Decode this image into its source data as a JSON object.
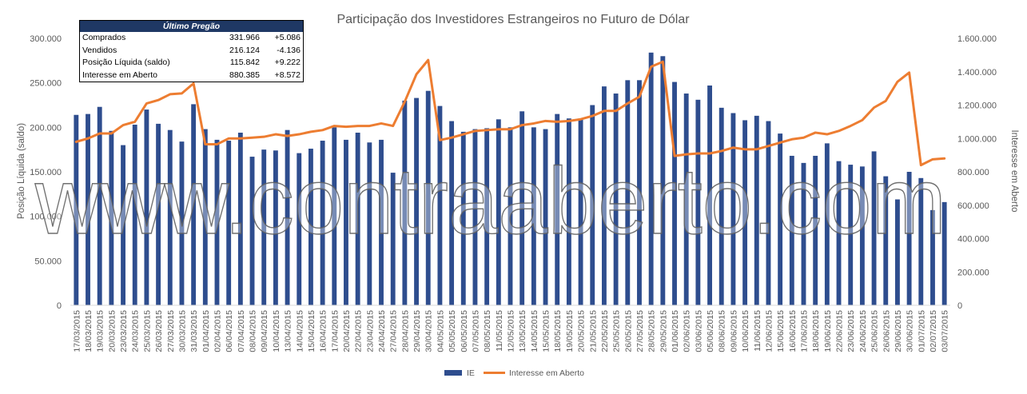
{
  "chart_data": {
    "type": "bar+line",
    "title": "Participação dos Investidores Estrangeiros no Futuro de Dólar",
    "ylabel_left": "Posição Líquida (saldo)",
    "ylabel_right": "Interesse em Aberto",
    "ylim_left": [
      0,
      300000
    ],
    "ylim_right": [
      0,
      1600000
    ],
    "yticks_left": [
      "0",
      "50.000",
      "100.000",
      "150.000",
      "200.000",
      "250.000",
      "300.000"
    ],
    "yticks_right": [
      "0",
      "200.000",
      "400.000",
      "600.000",
      "800.000",
      "1.000.000",
      "1.200.000",
      "1.400.000",
      "1.600.000"
    ],
    "grid": false,
    "legend_position": "bottom",
    "bar_color": "#2e4d8e",
    "line_color": "#ed7d31",
    "categories": [
      "17/03/2015",
      "18/03/2015",
      "19/03/2015",
      "20/03/2015",
      "23/03/2015",
      "24/03/2015",
      "25/03/2015",
      "26/03/2015",
      "27/03/2015",
      "30/03/2015",
      "31/03/2015",
      "01/04/2015",
      "02/04/2015",
      "06/04/2015",
      "07/04/2015",
      "08/04/2015",
      "09/04/2015",
      "10/04/2015",
      "13/04/2015",
      "14/04/2015",
      "15/04/2015",
      "16/04/2015",
      "17/04/2015",
      "20/04/2015",
      "22/04/2015",
      "23/04/2015",
      "24/04/2015",
      "27/04/2015",
      "28/04/2015",
      "29/04/2015",
      "30/04/2015",
      "04/05/2015",
      "05/05/2015",
      "06/05/2015",
      "07/05/2015",
      "08/05/2015",
      "11/05/2015",
      "12/05/2015",
      "13/05/2015",
      "14/05/2015",
      "15/05/2015",
      "18/05/2015",
      "19/05/2015",
      "20/05/2015",
      "21/05/2015",
      "22/05/2015",
      "25/05/2015",
      "26/05/2015",
      "27/05/2015",
      "28/05/2015",
      "29/05/2015",
      "01/06/2015",
      "02/06/2015",
      "03/06/2015",
      "05/06/2015",
      "08/06/2015",
      "09/06/2015",
      "10/06/2015",
      "11/06/2015",
      "12/06/2015",
      "15/06/2015",
      "16/06/2015",
      "17/06/2015",
      "18/06/2015",
      "19/06/2015",
      "22/06/2015",
      "23/06/2015",
      "24/06/2015",
      "25/06/2015",
      "26/06/2015",
      "29/06/2015",
      "30/06/2015",
      "01/07/2015",
      "02/07/2015",
      "03/07/2015"
    ],
    "series": [
      {
        "name": "IE",
        "axis": "left",
        "kind": "bar",
        "values": [
          214000,
          215000,
          223000,
          196000,
          180000,
          203000,
          220000,
          204000,
          197000,
          184000,
          226000,
          198000,
          186000,
          185000,
          194000,
          167000,
          175000,
          174000,
          197000,
          171000,
          176000,
          185000,
          200000,
          186000,
          194000,
          183000,
          186000,
          149000,
          230000,
          233000,
          241000,
          224000,
          207000,
          195000,
          198000,
          199000,
          209000,
          200000,
          218000,
          200000,
          198000,
          215000,
          210000,
          210000,
          225000,
          246000,
          238000,
          253000,
          253000,
          284000,
          280000,
          251000,
          238000,
          231000,
          247000,
          222000,
          216000,
          208000,
          213000,
          207000,
          193000,
          168000,
          160000,
          168000,
          182000,
          162000,
          158000,
          156000,
          173000,
          145000,
          119000,
          150000,
          143000,
          107000,
          116000
        ]
      },
      {
        "name": "Interesse em Aberto",
        "axis": "right",
        "kind": "line",
        "values": [
          980000,
          1000000,
          1030000,
          1030000,
          1080000,
          1100000,
          1210000,
          1230000,
          1265000,
          1270000,
          1330000,
          965000,
          965000,
          1000000,
          1000000,
          1005000,
          1010000,
          1025000,
          1015000,
          1025000,
          1040000,
          1050000,
          1075000,
          1070000,
          1075000,
          1075000,
          1090000,
          1075000,
          1220000,
          1385000,
          1470000,
          990000,
          1005000,
          1025000,
          1045000,
          1050000,
          1055000,
          1055000,
          1080000,
          1090000,
          1105000,
          1100000,
          1105000,
          1115000,
          1135000,
          1165000,
          1165000,
          1210000,
          1250000,
          1430000,
          1460000,
          895000,
          905000,
          910000,
          910000,
          925000,
          945000,
          935000,
          935000,
          955000,
          975000,
          995000,
          1005000,
          1035000,
          1025000,
          1045000,
          1075000,
          1110000,
          1185000,
          1225000,
          1340000,
          1395000,
          840000,
          875000,
          880000
        ]
      }
    ]
  },
  "summary": {
    "title": "Último Pregão",
    "rows": [
      {
        "label": "Comprados",
        "value": "331.966",
        "delta": "+5.086"
      },
      {
        "label": "Vendidos",
        "value": "216.124",
        "delta": "-4.136"
      },
      {
        "label": "Posição Líquida (saldo)",
        "value": "115.842",
        "delta": "+9.222"
      },
      {
        "label": "Interesse em Aberto",
        "value": "880.385",
        "delta": "+8.572"
      }
    ]
  },
  "legend": {
    "bar_label": "IE",
    "line_label": "Interesse em Aberto"
  },
  "watermark": "www.contraaberto.com"
}
